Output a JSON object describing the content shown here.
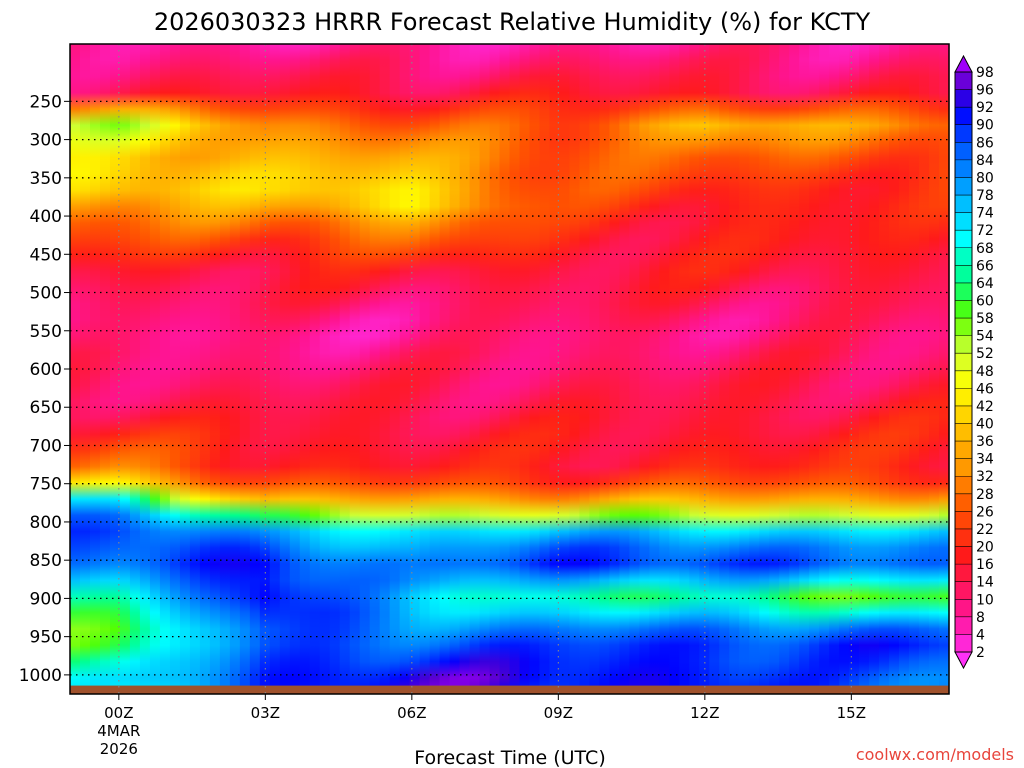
{
  "chart_data": {
    "type": "heatmap",
    "title": "2026030323 HRRR Forecast Relative Humidity (%) for KCTY",
    "xlabel": "Forecast Time (UTC)",
    "ylabel": "",
    "credit": "coolwx.com/models",
    "x_ticks": [
      "00Z",
      "03Z",
      "06Z",
      "09Z",
      "12Z",
      "15Z"
    ],
    "x_start_label": [
      "4MAR",
      "2026"
    ],
    "x_range_hours": [
      -1,
      17
    ],
    "y_ticks": [
      250,
      300,
      350,
      400,
      450,
      500,
      550,
      600,
      650,
      700,
      750,
      800,
      850,
      900,
      950,
      1000
    ],
    "y_range_hPa": [
      175,
      1025
    ],
    "surface_color": "#a0522d",
    "colorbar_labels": [
      98,
      96,
      92,
      90,
      86,
      84,
      80,
      78,
      74,
      72,
      68,
      66,
      64,
      60,
      58,
      54,
      52,
      48,
      46,
      42,
      40,
      36,
      34,
      32,
      28,
      26,
      22,
      20,
      16,
      14,
      10,
      8,
      4,
      2
    ],
    "color_stops": [
      {
        "v": 0,
        "c": "#ff33ff"
      },
      {
        "v": 8,
        "c": "#ff1493"
      },
      {
        "v": 18,
        "c": "#ff1a1a"
      },
      {
        "v": 26,
        "c": "#ff5500"
      },
      {
        "v": 33,
        "c": "#ff9900"
      },
      {
        "v": 40,
        "c": "#ffcc00"
      },
      {
        "v": 46,
        "c": "#ffff00"
      },
      {
        "v": 52,
        "c": "#ccff33"
      },
      {
        "v": 58,
        "c": "#55ff00"
      },
      {
        "v": 64,
        "c": "#00ff88"
      },
      {
        "v": 70,
        "c": "#00ffff"
      },
      {
        "v": 78,
        "c": "#00aaff"
      },
      {
        "v": 86,
        "c": "#0055ff"
      },
      {
        "v": 92,
        "c": "#0000ff"
      },
      {
        "v": 96,
        "c": "#5500cc"
      },
      {
        "v": 100,
        "c": "#aa00ff"
      }
    ],
    "series": [
      {
        "name": "00Z",
        "hour": 0,
        "rh": [
          {
            "p": 175,
            "rh": 8
          },
          {
            "p": 240,
            "rh": 14
          },
          {
            "p": 280,
            "rh": 52
          },
          {
            "p": 320,
            "rh": 40
          },
          {
            "p": 360,
            "rh": 44
          },
          {
            "p": 400,
            "rh": 30
          },
          {
            "p": 470,
            "rh": 16
          },
          {
            "p": 550,
            "rh": 8
          },
          {
            "p": 650,
            "rh": 14
          },
          {
            "p": 740,
            "rh": 30
          },
          {
            "p": 770,
            "rh": 70
          },
          {
            "p": 800,
            "rh": 90
          },
          {
            "p": 850,
            "rh": 84
          },
          {
            "p": 900,
            "rh": 66
          },
          {
            "p": 950,
            "rh": 58
          },
          {
            "p": 1000,
            "rh": 68
          }
        ]
      },
      {
        "name": "03Z",
        "hour": 3,
        "rh": [
          {
            "p": 175,
            "rh": 8
          },
          {
            "p": 240,
            "rh": 16
          },
          {
            "p": 280,
            "rh": 32
          },
          {
            "p": 320,
            "rh": 36
          },
          {
            "p": 360,
            "rh": 40
          },
          {
            "p": 400,
            "rh": 30
          },
          {
            "p": 470,
            "rh": 16
          },
          {
            "p": 550,
            "rh": 8
          },
          {
            "p": 650,
            "rh": 14
          },
          {
            "p": 740,
            "rh": 20
          },
          {
            "p": 780,
            "rh": 40
          },
          {
            "p": 800,
            "rh": 70
          },
          {
            "p": 850,
            "rh": 92
          },
          {
            "p": 900,
            "rh": 96
          },
          {
            "p": 950,
            "rh": 84
          },
          {
            "p": 1000,
            "rh": 90
          }
        ]
      },
      {
        "name": "06Z",
        "hour": 6,
        "rh": [
          {
            "p": 175,
            "rh": 6
          },
          {
            "p": 240,
            "rh": 16
          },
          {
            "p": 280,
            "rh": 26
          },
          {
            "p": 320,
            "rh": 34
          },
          {
            "p": 360,
            "rh": 42
          },
          {
            "p": 380,
            "rh": 48
          },
          {
            "p": 410,
            "rh": 34
          },
          {
            "p": 470,
            "rh": 16
          },
          {
            "p": 550,
            "rh": 8
          },
          {
            "p": 650,
            "rh": 14
          },
          {
            "p": 740,
            "rh": 18
          },
          {
            "p": 780,
            "rh": 40
          },
          {
            "p": 810,
            "rh": 72
          },
          {
            "p": 860,
            "rh": 80
          },
          {
            "p": 900,
            "rh": 72
          },
          {
            "p": 950,
            "rh": 84
          },
          {
            "p": 1000,
            "rh": 94
          }
        ]
      },
      {
        "name": "09Z",
        "hour": 9,
        "rh": [
          {
            "p": 175,
            "rh": 8
          },
          {
            "p": 240,
            "rh": 16
          },
          {
            "p": 280,
            "rh": 24
          },
          {
            "p": 320,
            "rh": 28
          },
          {
            "p": 360,
            "rh": 24
          },
          {
            "p": 400,
            "rh": 20
          },
          {
            "p": 470,
            "rh": 16
          },
          {
            "p": 550,
            "rh": 10
          },
          {
            "p": 650,
            "rh": 14
          },
          {
            "p": 740,
            "rh": 18
          },
          {
            "p": 780,
            "rh": 40
          },
          {
            "p": 810,
            "rh": 74
          },
          {
            "p": 850,
            "rh": 92
          },
          {
            "p": 900,
            "rh": 66
          },
          {
            "p": 950,
            "rh": 86
          },
          {
            "p": 1000,
            "rh": 92
          }
        ]
      },
      {
        "name": "12Z",
        "hour": 12,
        "rh": [
          {
            "p": 175,
            "rh": 8
          },
          {
            "p": 240,
            "rh": 16
          },
          {
            "p": 280,
            "rh": 40
          },
          {
            "p": 320,
            "rh": 26
          },
          {
            "p": 360,
            "rh": 22
          },
          {
            "p": 400,
            "rh": 18
          },
          {
            "p": 470,
            "rh": 16
          },
          {
            "p": 550,
            "rh": 10
          },
          {
            "p": 650,
            "rh": 14
          },
          {
            "p": 740,
            "rh": 20
          },
          {
            "p": 780,
            "rh": 40
          },
          {
            "p": 810,
            "rh": 74
          },
          {
            "p": 850,
            "rh": 92
          },
          {
            "p": 900,
            "rh": 62
          },
          {
            "p": 950,
            "rh": 88
          },
          {
            "p": 1000,
            "rh": 92
          }
        ]
      },
      {
        "name": "15Z",
        "hour": 15,
        "rh": [
          {
            "p": 175,
            "rh": 8
          },
          {
            "p": 240,
            "rh": 14
          },
          {
            "p": 280,
            "rh": 32
          },
          {
            "p": 320,
            "rh": 26
          },
          {
            "p": 360,
            "rh": 20
          },
          {
            "p": 400,
            "rh": 18
          },
          {
            "p": 470,
            "rh": 16
          },
          {
            "p": 550,
            "rh": 10
          },
          {
            "p": 650,
            "rh": 16
          },
          {
            "p": 740,
            "rh": 20
          },
          {
            "p": 780,
            "rh": 40
          },
          {
            "p": 810,
            "rh": 72
          },
          {
            "p": 850,
            "rh": 86
          },
          {
            "p": 900,
            "rh": 58
          },
          {
            "p": 950,
            "rh": 90
          },
          {
            "p": 1000,
            "rh": 84
          }
        ]
      }
    ]
  }
}
